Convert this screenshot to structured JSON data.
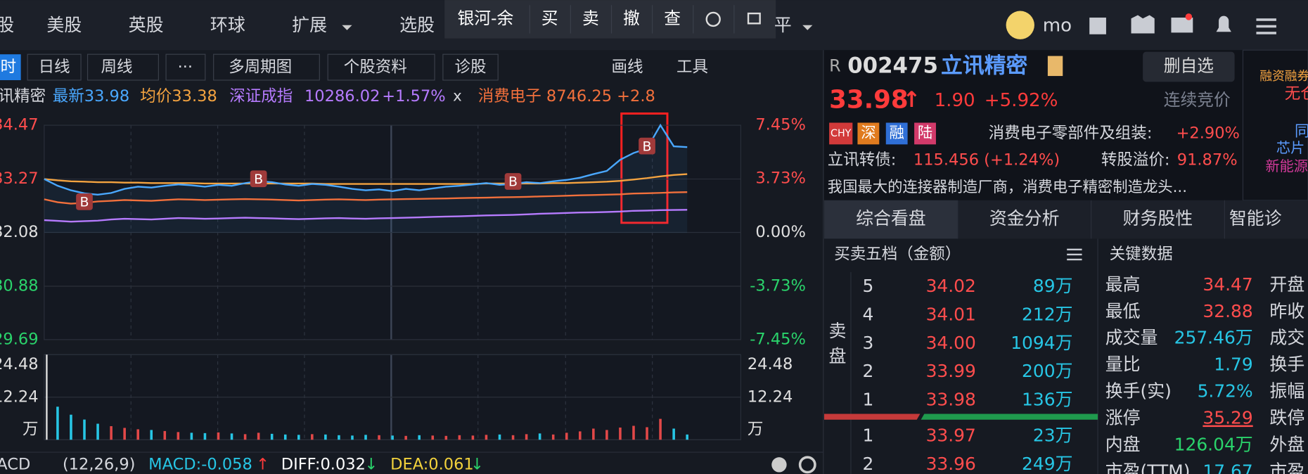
{
  "nav": {
    "items": [
      "股",
      "美股",
      "英股",
      "环球",
      "扩展",
      "选股",
      "平"
    ],
    "user": "mo"
  },
  "trade_bar": {
    "account": "银河-余",
    "actions": [
      "买",
      "卖",
      "撤",
      "查"
    ]
  },
  "toolbar": {
    "items": [
      "时",
      "日线",
      "周线",
      "···",
      "多周期图",
      "个股资料",
      "诊股"
    ],
    "right": [
      "画线",
      "工具"
    ]
  },
  "legend": {
    "name": "讯精密",
    "close": "x",
    "index_value": "10286.02",
    "index_change": "+1.57%"
  },
  "chart_data": [
    {
      "type": "line",
      "ylim": [
        29.69,
        34.47
      ],
      "yticks": [
        34.47,
        33.27,
        32.08,
        30.88,
        29.69
      ],
      "y2lim": [
        -7.45,
        7.45
      ],
      "y2ticks": [
        {
          "value": 7.45,
          "label": "7.45%"
        },
        {
          "value": 3.73,
          "label": "3.73%"
        },
        {
          "value": 0,
          "label": "0.00%"
        },
        {
          "value": -3.73,
          "label": "-3.73%"
        },
        {
          "value": -7.45,
          "label": "-7.45%"
        }
      ],
      "grid": true,
      "series": [
        {
          "name": "最新33.98",
          "color": "#4aa8ff",
          "values": [
            33.27,
            33.12,
            33.02,
            32.95,
            32.92,
            32.96,
            33.05,
            33.1,
            33.08,
            33.12,
            33.15,
            33.13,
            33.1,
            33.14,
            33.12,
            33.18,
            33.22,
            33.2,
            33.15,
            33.12,
            33.16,
            33.14,
            33.1,
            33.05,
            33.02,
            33.04,
            33.0,
            33.05,
            33.02,
            33.06,
            33.1,
            33.12,
            33.15,
            33.18,
            33.14,
            33.16,
            33.2,
            33.18,
            33.22,
            33.25,
            33.3,
            33.38,
            33.45,
            33.7,
            33.85,
            33.95,
            34.47,
            34.0,
            33.98,
            null,
            null,
            null,
            null
          ]
        },
        {
          "name": "均价33.38",
          "color": "#f4a340",
          "values": [
            33.27,
            33.24,
            33.22,
            33.21,
            33.2,
            33.2,
            33.19,
            33.19,
            33.18,
            33.18,
            33.18,
            33.18,
            33.17,
            33.17,
            33.17,
            33.17,
            33.17,
            33.17,
            33.17,
            33.17,
            33.17,
            33.16,
            33.16,
            33.16,
            33.16,
            33.16,
            33.16,
            33.16,
            33.16,
            33.16,
            33.16,
            33.16,
            33.16,
            33.17,
            33.17,
            33.17,
            33.17,
            33.17,
            33.18,
            33.18,
            33.19,
            33.2,
            33.21,
            33.23,
            33.26,
            33.29,
            33.33,
            33.36,
            33.38,
            null,
            null,
            null,
            null
          ]
        },
        {
          "name": "深证成指",
          "color": "#b67bff",
          "axis": "y2",
          "values": [
            0.85,
            0.8,
            0.75,
            0.78,
            0.82,
            0.9,
            0.95,
            0.92,
            0.9,
            0.95,
            1.0,
            0.98,
            0.95,
            0.97,
            1.0,
            1.02,
            1.0,
            0.98,
            0.95,
            0.92,
            0.95,
            0.98,
            1.0,
            0.97,
            0.95,
            0.98,
            1.0,
            1.02,
            1.05,
            1.08,
            1.1,
            1.12,
            1.15,
            1.18,
            1.2,
            1.22,
            1.25,
            1.3,
            1.32,
            1.35,
            1.38,
            1.4,
            1.42,
            1.45,
            1.5,
            1.52,
            1.55,
            1.56,
            1.57,
            null,
            null,
            null,
            null
          ]
        },
        {
          "name": "消费电子 8746.25 +2.8",
          "color": "#f2703c",
          "axis": "y2",
          "values": [
            2.3,
            2.1,
            2.0,
            2.05,
            2.15,
            2.2,
            2.25,
            2.22,
            2.2,
            2.25,
            2.3,
            2.28,
            2.25,
            2.27,
            2.3,
            2.32,
            2.3,
            2.28,
            2.25,
            2.22,
            2.25,
            2.28,
            2.3,
            2.27,
            2.25,
            2.28,
            2.3,
            2.32,
            2.33,
            2.35,
            2.36,
            2.38,
            2.4,
            2.42,
            2.44,
            2.45,
            2.47,
            2.5,
            2.52,
            2.55,
            2.58,
            2.6,
            2.62,
            2.65,
            2.7,
            2.72,
            2.75,
            2.78,
            2.8,
            null,
            null,
            null,
            null
          ]
        }
      ],
      "annotations": [
        {
          "text": "B",
          "x": 3
        },
        {
          "text": "B",
          "x": 16
        },
        {
          "text": "B",
          "x": 35
        },
        {
          "text": "B",
          "x": 45
        }
      ]
    },
    {
      "type": "bar",
      "ylim": [
        0,
        24.48
      ],
      "yticks": [
        24.48,
        12.24,
        {
          "value": 0,
          "label": "万"
        }
      ],
      "values": [
        24.48,
        9.5,
        7.2,
        5.8,
        4.6,
        3.9,
        3.4,
        3.0,
        2.8,
        2.5,
        2.2,
        2.0,
        1.9,
        2.1,
        1.8,
        1.6,
        2.0,
        1.7,
        1.5,
        1.4,
        1.6,
        1.5,
        1.3,
        1.2,
        1.4,
        1.3,
        1.2,
        1.1,
        1.3,
        1.2,
        1.1,
        1.3,
        1.2,
        1.4,
        1.5,
        1.3,
        1.6,
        1.8,
        1.5,
        2.0,
        2.4,
        3.2,
        2.8,
        3.5,
        4.0,
        3.6,
        6.0,
        3.2,
        1.5,
        null,
        null,
        null,
        null
      ]
    }
  ],
  "macd": {
    "name": "ACD",
    "params": "(12,26,9)",
    "macd": "MACD:-0.058",
    "macd_arrow": "↑",
    "diff": "DIFF:0.032",
    "diff_arrow": "↓",
    "dea": "DEA:0.061",
    "dea_arrow": "↓"
  },
  "quote": {
    "market": "R",
    "code": "002475",
    "name": "立讯精密",
    "watch_button": "删自选",
    "price": "33.98",
    "arrow": "↑",
    "change": "1.90",
    "change_pct": "+5.92%",
    "status": "连续竞价",
    "tags": [
      "CHY",
      "深",
      "融",
      "陆"
    ],
    "sector": "消费电子零部件及组装:",
    "sector_change": "+2.90%",
    "bond_label": "立讯转债:",
    "bond_value": "115.456 (+1.24%)",
    "premium_label": "转股溢价:",
    "premium_value": "91.87%",
    "description": "我国最大的连接器制造厂商，消费电子精密制造龙头..."
  },
  "side_panel": [
    "融资融券",
    "无仓",
    "同",
    "芯片",
    "新能源"
  ],
  "tabs": [
    "综合看盘",
    "资金分析",
    "财务股性",
    "智能诊"
  ],
  "order_book": {
    "title": "买卖五档（金额）",
    "sell_label": [
      "卖",
      "盘"
    ],
    "sell": [
      [
        "5",
        "34.02",
        "89万"
      ],
      [
        "4",
        "34.01",
        "212万"
      ],
      [
        "3",
        "34.00",
        "1094万"
      ],
      [
        "2",
        "33.99",
        "200万"
      ],
      [
        "1",
        "33.98",
        "136万"
      ]
    ],
    "buy": [
      [
        "1",
        "33.97",
        "23万"
      ],
      [
        "2",
        "33.96",
        "249万"
      ]
    ]
  },
  "key_data": {
    "title": "关键数据",
    "rows": [
      [
        "最高",
        "34.47"
      ],
      [
        "最低",
        "32.88"
      ],
      [
        "成交量",
        "257.46万"
      ],
      [
        "量比",
        "1.79"
      ],
      [
        "换手(实)",
        "5.72%"
      ],
      [
        "涨停",
        "35.29"
      ],
      [
        "内盘",
        "126.04万"
      ],
      [
        "市盈(TTM)",
        "17.67"
      ]
    ],
    "right_labels": [
      "开盘",
      "昨收",
      "成交",
      "换手",
      "振幅",
      "跌停",
      "外盘",
      "市盈"
    ]
  }
}
